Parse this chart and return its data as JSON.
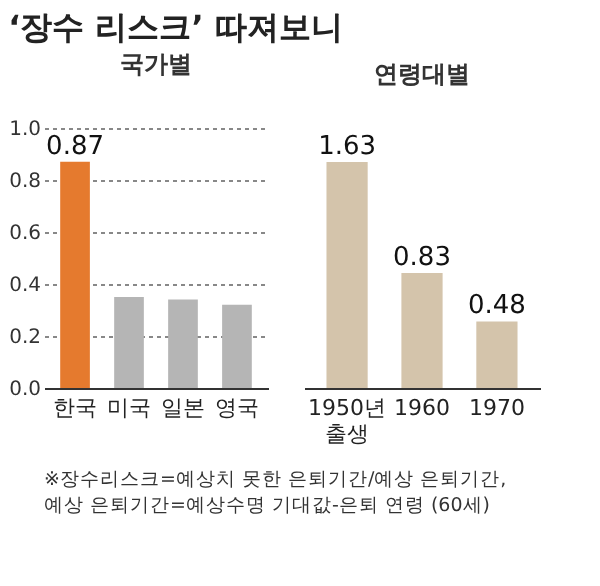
{
  "chart_data": [
    {
      "type": "other",
      "title": "‘장수 리스크’ 따져보니"
    },
    {
      "type": "bar",
      "title": "국가별",
      "categories": [
        "한국",
        "미국",
        "일본",
        "영국"
      ],
      "values": [
        0.87,
        0.35,
        0.34,
        0.32
      ],
      "colors": [
        "#e57a2e",
        "#b5b5b5",
        "#b5b5b5",
        "#b5b5b5"
      ],
      "value_labels": [
        "0.87",
        null,
        null,
        null
      ],
      "ylim": [
        0,
        1.0
      ],
      "yticks": [
        {
          "value": 0,
          "label": "0.0"
        },
        0.2,
        0.4,
        0.6,
        0.8,
        {
          "value": 1,
          "label": "1.0"
        }
      ],
      "grid": "y",
      "annotations": [
        "※장수리스크=예상치 못한 은퇴기간/예상 은퇴기간,",
        "예상 은퇴기간=예상수명 기대값-은퇴 연령 (60세)"
      ]
    },
    {
      "type": "bar",
      "title": "연령대별",
      "categories": [
        "1950년 출생",
        "1960",
        "1970"
      ],
      "values": [
        1.63,
        0.83,
        0.48
      ],
      "colors": [
        "#d4c4ab",
        "#d4c4ab",
        "#d4c4ab"
      ],
      "data_labels": true
    }
  ]
}
